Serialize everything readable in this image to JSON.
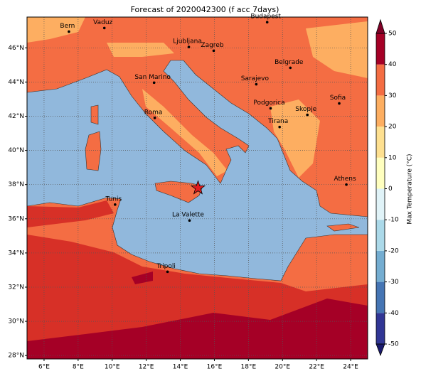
{
  "title": "Forecast of 2020042300 (f acc 7days)",
  "map": {
    "lonlim": [
      5,
      25
    ],
    "latlim": [
      27.8,
      47.8
    ],
    "lonticks": [
      {
        "value": 6,
        "label": "6°E"
      },
      {
        "value": 8,
        "label": "8°E"
      },
      {
        "value": 10,
        "label": "10°E"
      },
      {
        "value": 12,
        "label": "12°E"
      },
      {
        "value": 14,
        "label": "14°E"
      },
      {
        "value": 16,
        "label": "16°E"
      },
      {
        "value": 18,
        "label": "18°E"
      },
      {
        "value": 20,
        "label": "20°E"
      },
      {
        "value": 22,
        "label": "22°E"
      },
      {
        "value": 24,
        "label": "24°E"
      }
    ],
    "latticks": [
      {
        "value": 28,
        "label": "28°N"
      },
      {
        "value": 30,
        "label": "30°N"
      },
      {
        "value": 32,
        "label": "32°N"
      },
      {
        "value": 34,
        "label": "34°N"
      },
      {
        "value": 36,
        "label": "36°N"
      },
      {
        "value": 38,
        "label": "38°N"
      },
      {
        "value": 40,
        "label": "40°N"
      },
      {
        "value": 42,
        "label": "42°N"
      },
      {
        "value": 44,
        "label": "44°N"
      },
      {
        "value": 46,
        "label": "46°N"
      }
    ],
    "grid": true
  },
  "cities": [
    {
      "name": "Bern",
      "lon": 7.46,
      "lat": 46.95
    },
    {
      "name": "Vaduz",
      "lon": 9.54,
      "lat": 47.16
    },
    {
      "name": "Budapest",
      "lon": 19.1,
      "lat": 47.5
    },
    {
      "name": "Ljubljana",
      "lon": 14.5,
      "lat": 46.05
    },
    {
      "name": "Zagreb",
      "lon": 15.96,
      "lat": 45.83
    },
    {
      "name": "Belgrade",
      "lon": 20.46,
      "lat": 44.83
    },
    {
      "name": "San Marino",
      "lon": 12.46,
      "lat": 43.96
    },
    {
      "name": "Sarajevo",
      "lon": 18.46,
      "lat": 43.87
    },
    {
      "name": "Podgorica",
      "lon": 19.3,
      "lat": 42.46
    },
    {
      "name": "Sofia",
      "lon": 23.33,
      "lat": 42.75
    },
    {
      "name": "Skopje",
      "lon": 21.46,
      "lat": 42.08
    },
    {
      "name": "Roma",
      "lon": 12.5,
      "lat": 41.9
    },
    {
      "name": "Tirana",
      "lon": 19.83,
      "lat": 41.37
    },
    {
      "name": "Athens",
      "lon": 23.75,
      "lat": 38.0
    },
    {
      "name": "Tunis",
      "lon": 10.17,
      "lat": 36.83
    },
    {
      "name": "La Valette",
      "lon": 14.54,
      "lat": 35.9
    },
    {
      "name": "Tripoli",
      "lon": 13.25,
      "lat": 32.9
    }
  ],
  "marker": {
    "lon": 15.04,
    "lat": 37.8,
    "color": "#e31a1c"
  },
  "colorbar": {
    "label": "Max Temperature (°C)",
    "ticks": [
      -50,
      -40,
      -30,
      -20,
      -10,
      0,
      10,
      20,
      30,
      40,
      50
    ],
    "colors": [
      "#313695",
      "#4575b4",
      "#74add1",
      "#abd9e9",
      "#e0f3f8",
      "#ffffbf",
      "#fee090",
      "#fdae61",
      "#f46d43",
      "#a50026"
    ],
    "under": "#1a1a6e",
    "over": "#800026"
  }
}
